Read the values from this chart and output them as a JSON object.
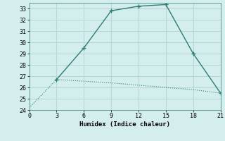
{
  "line1_x": [
    0,
    3,
    6,
    9,
    12,
    15,
    18,
    21
  ],
  "line1_y": [
    24.2,
    26.7,
    26.55,
    26.4,
    26.2,
    26.0,
    25.8,
    25.5
  ],
  "line2_x": [
    3,
    6,
    9,
    12,
    15,
    18,
    21
  ],
  "line2_y": [
    26.7,
    29.5,
    32.8,
    33.2,
    33.35,
    29.0,
    25.5
  ],
  "line_color": "#2e7d72",
  "bg_color": "#d4eeee",
  "grid_color": "#b8d8d8",
  "xlabel": "Humidex (Indice chaleur)",
  "xlim": [
    0,
    21
  ],
  "ylim": [
    24,
    33.5
  ],
  "xticks": [
    0,
    3,
    6,
    9,
    12,
    15,
    18,
    21
  ],
  "yticks": [
    24,
    25,
    26,
    27,
    28,
    29,
    30,
    31,
    32,
    33
  ],
  "font_family": "monospace"
}
